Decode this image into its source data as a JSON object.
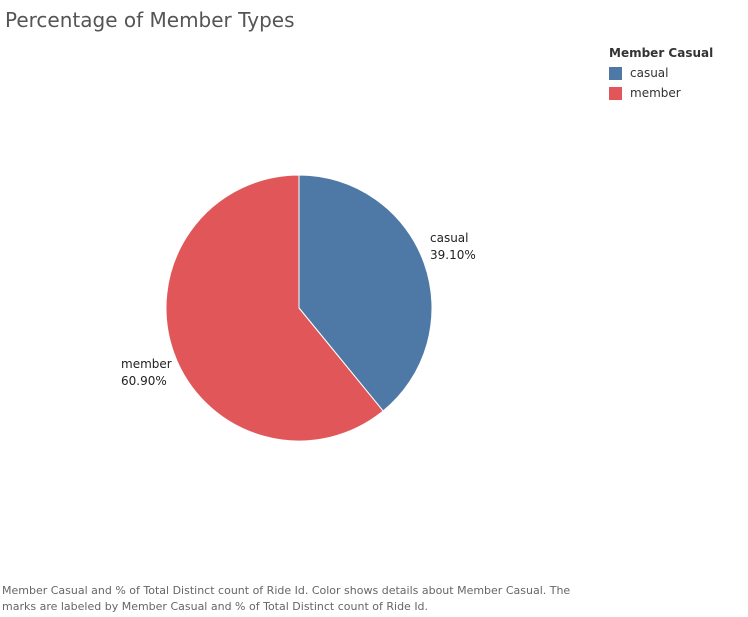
{
  "chart_data": {
    "type": "pie",
    "title": "Percentage of Member Types",
    "categories": [
      "casual",
      "member"
    ],
    "values": [
      39.1,
      60.9
    ],
    "value_labels": [
      "39.10%",
      "60.90%"
    ],
    "colors": [
      "#4e79a7",
      "#e15759"
    ],
    "legend": {
      "title": "Member Casual",
      "placement": "top-right",
      "items": [
        "casual",
        "member"
      ]
    },
    "caption": "Member Casual and % of Total Distinct count of Ride Id.  Color shows details about Member Casual.  The marks are labeled by Member Casual and % of Total Distinct count of Ride Id."
  }
}
